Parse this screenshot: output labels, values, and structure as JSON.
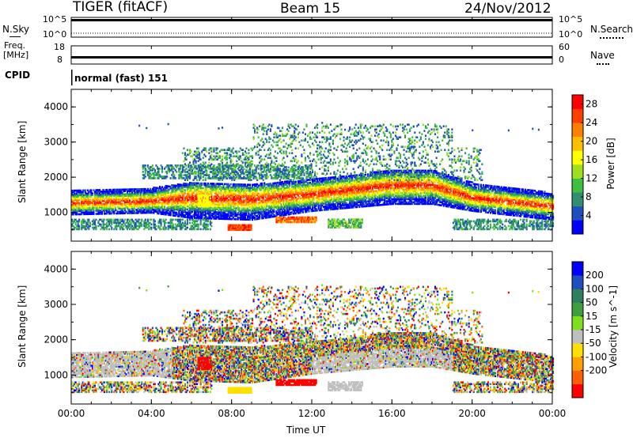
{
  "header": {
    "radar": "TIGER (fitACF)",
    "beam": "Beam 15",
    "date": "24/Nov/2012"
  },
  "strips": {
    "nsky": {
      "label": "N.Sky",
      "ticks": [
        "10^5",
        "10^0"
      ]
    },
    "nsearch": {
      "label": "N.Search",
      "ticks": [
        "10^5",
        "10^0"
      ]
    },
    "freq": {
      "label_line1": "Freq.",
      "label_line2": "[MHz]",
      "ticks": [
        "18",
        "8"
      ]
    },
    "nave": {
      "label": "Nave",
      "ticks": [
        "60",
        "0"
      ]
    },
    "cpid": {
      "label": "CPID",
      "value": "normal (fast) 151"
    }
  },
  "colors": {
    "power_scale": [
      "#0000ff",
      "#1f4fbf",
      "#2f8f6f",
      "#3fbf3f",
      "#9fdf1f",
      "#ffff00",
      "#ffbf00",
      "#ff7f00",
      "#ff3f00",
      "#ff0000"
    ],
    "velocity_scale": [
      "#0000ff",
      "#1f4fbf",
      "#2f7f5f",
      "#3f9f3f",
      "#7fdf1f",
      "#bfbfbf",
      "#ffdf00",
      "#ff9f00",
      "#ff5f00",
      "#ff0000"
    ],
    "ground_scatter": "#bfbfbf"
  },
  "chart_data": [
    {
      "type": "heatmap",
      "name": "power",
      "xlabel": "Time UT",
      "ylabel": "Slant Range [km]",
      "xlim": [
        "00:00",
        "00:00"
      ],
      "x_ticks": [
        "00:00",
        "04:00",
        "08:00",
        "12:00",
        "16:00",
        "20:00",
        "00:00"
      ],
      "ylim": [
        180,
        4500
      ],
      "y_ticks": [
        "1000",
        "2000",
        "3000",
        "4000"
      ],
      "colorbar": {
        "label": "Power [dB]",
        "ticks": [
          "4",
          "8",
          "12",
          "16",
          "20",
          "24",
          "28"
        ],
        "range": [
          0,
          30
        ]
      },
      "main_band_km": [
        {
          "t": 0,
          "lo": 1000,
          "hi": 1550,
          "peak": 1250
        },
        {
          "t": 4,
          "lo": 1050,
          "hi": 1600,
          "peak": 1300
        },
        {
          "t": 6,
          "lo": 900,
          "hi": 1750,
          "peak": 1400
        },
        {
          "t": 9,
          "lo": 850,
          "hi": 1700,
          "peak": 1350
        },
        {
          "t": 12,
          "lo": 1100,
          "hi": 1850,
          "peak": 1500
        },
        {
          "t": 16,
          "lo": 1300,
          "hi": 2100,
          "peak": 1750
        },
        {
          "t": 18,
          "lo": 1300,
          "hi": 2100,
          "peak": 1750
        },
        {
          "t": 20,
          "lo": 1100,
          "hi": 1750,
          "peak": 1400
        },
        {
          "t": 24,
          "lo": 850,
          "hi": 1450,
          "peak": 1150
        }
      ]
    },
    {
      "type": "heatmap",
      "name": "velocity",
      "xlabel": "Time UT",
      "ylabel": "Slant Range [km]",
      "xlim": [
        "00:00",
        "00:00"
      ],
      "x_ticks": [
        "00:00",
        "04:00",
        "08:00",
        "12:00",
        "16:00",
        "20:00",
        "00:00"
      ],
      "ylim": [
        180,
        4500
      ],
      "y_ticks": [
        "1000",
        "2000",
        "3000",
        "4000"
      ],
      "colorbar": {
        "label": "Velocity [m s^-1]",
        "ticks": [
          "200",
          "100",
          "50",
          "15",
          "-15",
          "-50",
          "-100",
          "-200"
        ],
        "range": [
          -250,
          250
        ]
      }
    }
  ]
}
